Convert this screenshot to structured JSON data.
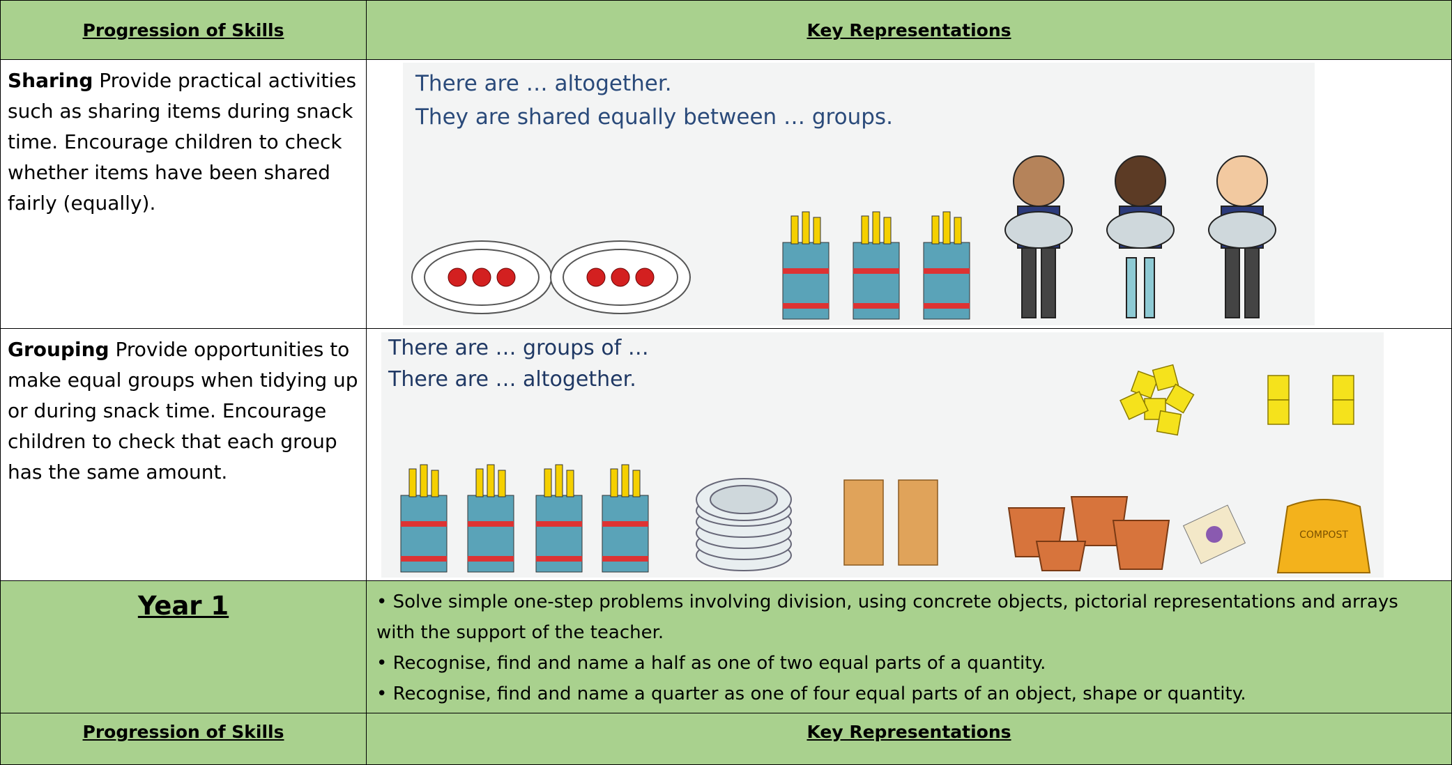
{
  "table": {
    "header": [
      "Progression of Skills",
      "Key Representations"
    ],
    "rows": [
      {
        "title": "Sharing",
        "text": "Provide practical activities such as sharing items during snack time. Encourage children to check whether items have been shared fairly (equally).",
        "image_text": [
          "There are … altogether.",
          "They are shared equally between … groups."
        ]
      },
      {
        "title": "Grouping",
        "text": "Provide opportunities to make equal groups when tidying up or during snack time. Encourage children to check that each group has the same amount.",
        "image_text": [
          "There are … groups of …",
          "There are … altogether."
        ],
        "bag_label": "COMPOST"
      }
    ],
    "year": {
      "title": "Year 1",
      "bullets": [
        "• Solve simple one-step problems involving division, using concrete objects, pictorial representations and arrays with the support of the teacher.",
        "• Recognise, find and name a half as one of two equal parts of a quantity.",
        "• Recognise, find and name a quarter as one of four equal parts of an object, shape or quantity."
      ]
    },
    "footer_header": [
      "Progression of Skills",
      "Key Representations"
    ]
  }
}
